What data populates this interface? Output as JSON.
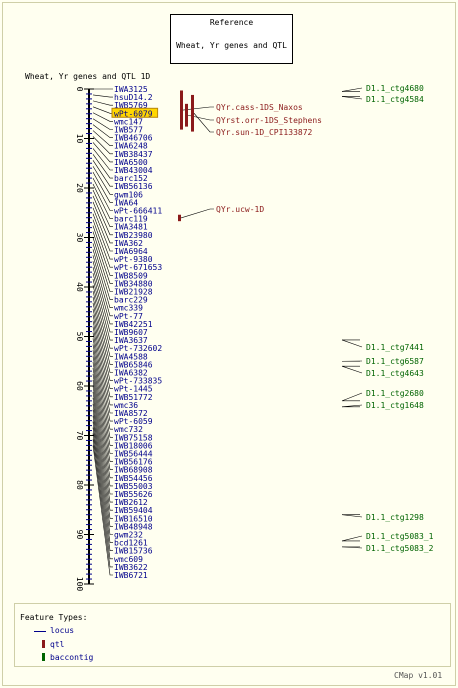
{
  "reference": {
    "title": "Reference",
    "subtitle": "Wheat, Yr genes and QTL"
  },
  "map_title": "Wheat, Yr genes and QTL 1D",
  "colors": {
    "locus": "#00008b",
    "qtl": "#8b1a1a",
    "baccontig": "#006400",
    "highlight": "#ffd700",
    "axis": "#000000",
    "tick": "#00008b"
  },
  "axis": {
    "min": 0,
    "max": 100,
    "tick_labels": [
      "0",
      "10",
      "20",
      "30",
      "40",
      "50",
      "60",
      "70",
      "80",
      "90",
      "100"
    ]
  },
  "highlighted_marker": "wPt-6079",
  "markers": [
    {
      "name": "IWA3125",
      "pos": 0.0
    },
    {
      "name": "hsuD14.2",
      "pos": 1.2
    },
    {
      "name": "IWB5769",
      "pos": 2.4
    },
    {
      "name": "wPt-6079",
      "pos": 3.6
    },
    {
      "name": "wmc147",
      "pos": 4.8
    },
    {
      "name": "IWB577",
      "pos": 6.0
    },
    {
      "name": "IWB46706",
      "pos": 7.2
    },
    {
      "name": "IWA6248",
      "pos": 8.4
    },
    {
      "name": "IWB38437",
      "pos": 9.6
    },
    {
      "name": "IWA6500",
      "pos": 10.8
    },
    {
      "name": "IWB43004",
      "pos": 12.0
    },
    {
      "name": "barc152",
      "pos": 13.2
    },
    {
      "name": "IWB56136",
      "pos": 14.4
    },
    {
      "name": "gwm106",
      "pos": 15.6
    },
    {
      "name": "IWA64",
      "pos": 16.8
    },
    {
      "name": "wPt-666411",
      "pos": 18.0
    },
    {
      "name": "barc119",
      "pos": 19.2
    },
    {
      "name": "IWA3481",
      "pos": 20.4
    },
    {
      "name": "IWB23980",
      "pos": 21.6
    },
    {
      "name": "IWA362",
      "pos": 22.8
    },
    {
      "name": "IWA6964",
      "pos": 24.0
    },
    {
      "name": "wPt-9380",
      "pos": 25.2
    },
    {
      "name": "wPt-671653",
      "pos": 26.4
    },
    {
      "name": "IWB8509",
      "pos": 27.6
    },
    {
      "name": "IWB34880",
      "pos": 28.8
    },
    {
      "name": "IWB21928",
      "pos": 30.0
    },
    {
      "name": "barc229",
      "pos": 31.2
    },
    {
      "name": "wmc339",
      "pos": 32.4
    },
    {
      "name": "wPt-77",
      "pos": 33.6
    },
    {
      "name": "IWB42251",
      "pos": 34.8
    },
    {
      "name": "IWB9607",
      "pos": 36.0
    },
    {
      "name": "IWA3637",
      "pos": 37.2
    },
    {
      "name": "wPt-732602",
      "pos": 38.4
    },
    {
      "name": "IWA4588",
      "pos": 39.6
    },
    {
      "name": "IWB65846",
      "pos": 40.8
    },
    {
      "name": "IWA6382",
      "pos": 42.0
    },
    {
      "name": "wPt-733835",
      "pos": 43.2
    },
    {
      "name": "wPt-1445",
      "pos": 44.4
    },
    {
      "name": "IWB51772",
      "pos": 45.6
    },
    {
      "name": "wmc36",
      "pos": 46.8
    },
    {
      "name": "IWA8572",
      "pos": 48.0
    },
    {
      "name": "wPt-6059",
      "pos": 49.2
    },
    {
      "name": "wmc732",
      "pos": 50.4
    },
    {
      "name": "IWB75158",
      "pos": 51.6
    },
    {
      "name": "IWB18006",
      "pos": 52.8
    },
    {
      "name": "IWB56444",
      "pos": 54.0
    },
    {
      "name": "IWB56176",
      "pos": 55.2
    },
    {
      "name": "IWB68908",
      "pos": 56.4
    },
    {
      "name": "IWB54456",
      "pos": 57.6
    },
    {
      "name": "IWB55003",
      "pos": 58.8
    },
    {
      "name": "IWB55626",
      "pos": 60.0
    },
    {
      "name": "IWB2612",
      "pos": 61.2
    },
    {
      "name": "IWB59404",
      "pos": 62.4
    },
    {
      "name": "IWB16510",
      "pos": 63.6
    },
    {
      "name": "IWB48948",
      "pos": 64.8
    },
    {
      "name": "gwm232",
      "pos": 66.0
    },
    {
      "name": "bcd1261",
      "pos": 67.2
    },
    {
      "name": "IWB15736",
      "pos": 68.4
    },
    {
      "name": "wmc609",
      "pos": 69.6
    },
    {
      "name": "IWB3622",
      "pos": 70.8
    },
    {
      "name": "IWB6721",
      "pos": 72.0
    }
  ],
  "qtls": [
    {
      "name": "QYr.cass-1DS_Naxos",
      "start": 0.3,
      "end": 8.2
    },
    {
      "name": "QYrst.orr-1DS_Stephens",
      "start": 3.0,
      "end": 7.6
    },
    {
      "name": "QYr.sun-1D_CPI133872",
      "start": 1.2,
      "end": 8.6
    },
    {
      "name": "QYr.ucw-1D",
      "start": 25.4,
      "end": 26.7
    }
  ],
  "contigs": [
    {
      "name": "D1.1_ctg4680",
      "pos": 0.5
    },
    {
      "name": "D1.1_ctg4584",
      "pos": 1.5
    },
    {
      "name": "D1.1_ctg7441",
      "pos": 50.7
    },
    {
      "name": "D1.1_ctg6587",
      "pos": 55.0
    },
    {
      "name": "D1.1_ctg4643",
      "pos": 56.0
    },
    {
      "name": "D1.1_ctg2680",
      "pos": 63.0
    },
    {
      "name": "D1.1_ctg1648",
      "pos": 64.2
    },
    {
      "name": "D1.1_ctg1298",
      "pos": 86.0
    },
    {
      "name": "D1.1_ctg5083_1",
      "pos": 91.3
    },
    {
      "name": "D1.1_ctg5083_2",
      "pos": 92.5
    }
  ],
  "legend": {
    "title": "Feature Types:",
    "items": [
      {
        "label": "locus",
        "icon": "line"
      },
      {
        "label": "qtl",
        "icon": "bar"
      },
      {
        "label": "baccontig",
        "icon": "bar"
      }
    ]
  },
  "footer": "CMap v1.01"
}
